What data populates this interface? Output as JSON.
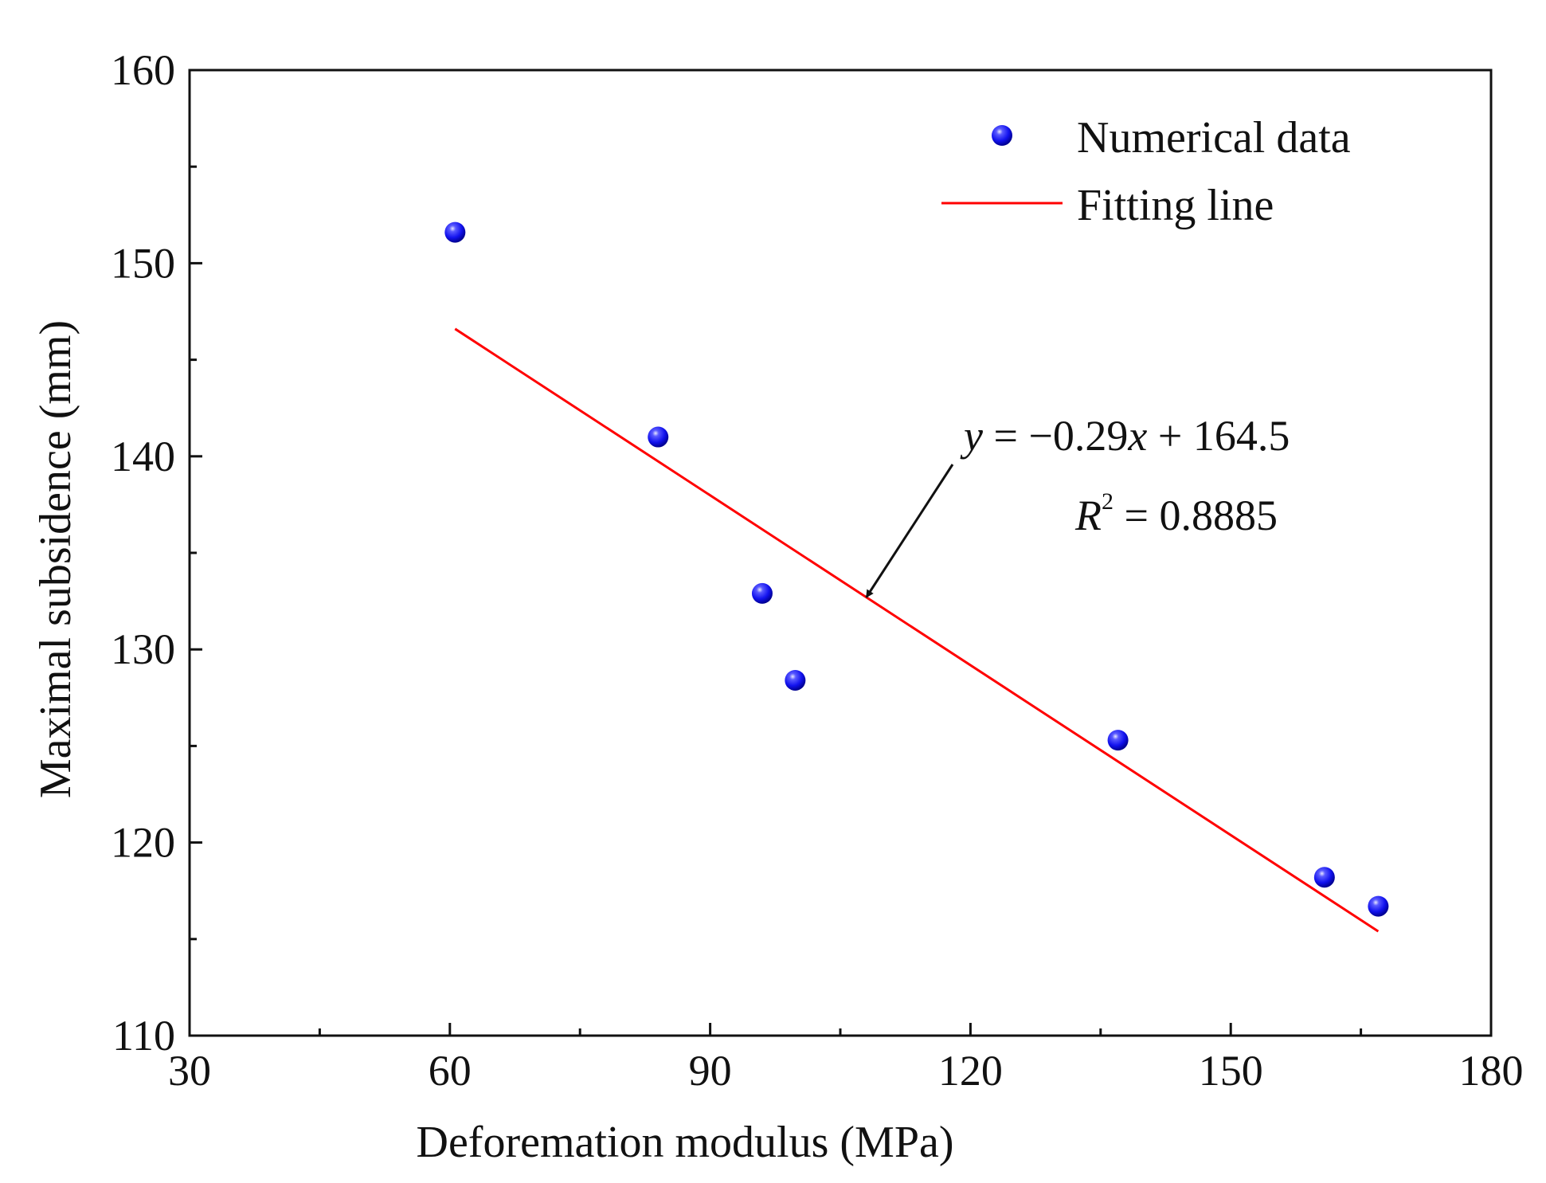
{
  "chart_data": {
    "type": "scatter",
    "title": "",
    "xlabel": "Deforemation modulus (MPa)",
    "ylabel": "Maximal subsidence (mm)",
    "xlim": [
      30,
      180
    ],
    "ylim": [
      110,
      160
    ],
    "x_major_ticks": [
      30,
      60,
      90,
      120,
      150,
      180
    ],
    "x_tick_labels": [
      "30",
      "60",
      "90",
      "120",
      "150",
      "180"
    ],
    "x_minor_ticks": [
      45,
      75,
      105,
      135,
      165
    ],
    "y_major_ticks": [
      110,
      120,
      130,
      140,
      150,
      160
    ],
    "y_tick_labels": [
      "110",
      "120",
      "130",
      "140",
      "150",
      "160"
    ],
    "y_minor_ticks": [
      115,
      125,
      135,
      145,
      155
    ],
    "grid": false,
    "legend_position": "top-right",
    "series": [
      {
        "name": "Numerical data",
        "kind": "scatter",
        "color": "#1a1aff",
        "x": [
          60.6,
          84.0,
          96.0,
          99.8,
          137.0,
          160.8,
          167.0
        ],
        "y": [
          151.6,
          141.0,
          132.9,
          128.4,
          125.3,
          118.2,
          116.7
        ]
      },
      {
        "name": "Fitting line",
        "kind": "line",
        "color": "#ff0000",
        "x": [
          60.6,
          167.0
        ],
        "y": [
          146.6,
          115.4
        ]
      }
    ],
    "annotation": {
      "equation_lhs": "y",
      "equation_rhs": " = −0.29",
      "equation_var": "x",
      "equation_tail": " + 164.5",
      "r2_base": "R",
      "r2_exp": "2",
      "r2_value": " = 0.8885",
      "arrow_target": [
        108,
        132.7
      ]
    }
  }
}
